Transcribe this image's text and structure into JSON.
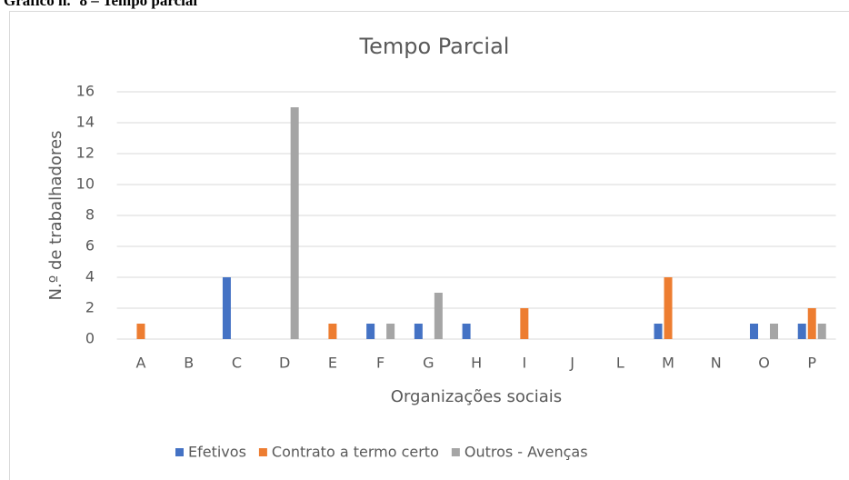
{
  "caption": "Gráfico n.º 8 – Tempo parcial",
  "chart_data": {
    "type": "bar",
    "title": "Tempo Parcial",
    "x_label": "Organizações sociais",
    "y_label": "N.º de trabalhadores",
    "categories": [
      "A",
      "B",
      "C",
      "D",
      "E",
      "F",
      "G",
      "H",
      "I",
      "J",
      "L",
      "M",
      "N",
      "O",
      "P"
    ],
    "series": [
      {
        "name": "Efetivos",
        "color": "#4472c4",
        "values": [
          0,
          0,
          4,
          0,
          0,
          1,
          1,
          1,
          0,
          0,
          0,
          1,
          0,
          1,
          1
        ]
      },
      {
        "name": "Contrato a termo certo",
        "color": "#ed7d31",
        "values": [
          1,
          0,
          0,
          0,
          1,
          0,
          0,
          0,
          2,
          0,
          0,
          4,
          0,
          0,
          2
        ]
      },
      {
        "name": "Outros - Avenças",
        "color": "#a5a5a5",
        "values": [
          0,
          0,
          0,
          15,
          0,
          1,
          3,
          0,
          0,
          0,
          0,
          0,
          0,
          1,
          1
        ]
      }
    ],
    "ylim": [
      0,
      16
    ],
    "yticks": [
      0,
      2,
      4,
      6,
      8,
      10,
      12,
      14,
      16
    ],
    "grid": true,
    "legend": "bottom"
  }
}
